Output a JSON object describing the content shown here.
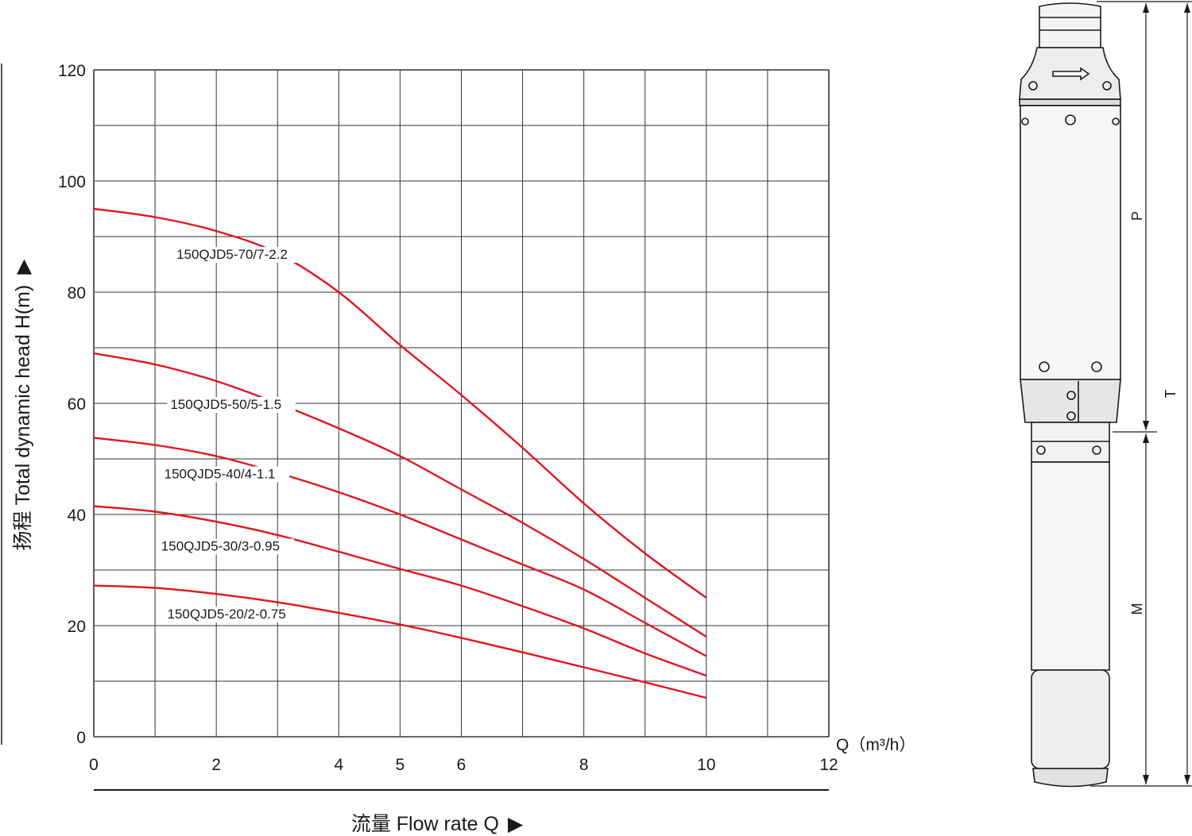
{
  "chart_data": {
    "type": "line",
    "xlabel": "流量 Flow rate Q",
    "xlabel_arrow": "▶",
    "ylabel": "扬程 Total dynamic head H(m)",
    "ylabel_arrow": "▶",
    "x_unit_label": "Q（m³/h）",
    "xlim": [
      0,
      12
    ],
    "ylim": [
      0,
      120
    ],
    "x_ticks": [
      0,
      2,
      4,
      5,
      6,
      8,
      10,
      12
    ],
    "y_ticks": [
      0,
      20,
      40,
      60,
      80,
      100,
      120
    ],
    "grid": true,
    "line_color": "#e2151f",
    "series": [
      {
        "name": "150QJD5-70/7-2.2",
        "x": [
          0,
          1,
          2,
          3,
          4,
          5,
          6,
          7,
          8,
          9,
          10
        ],
        "values": [
          95,
          93.5,
          91,
          87,
          80,
          70.5,
          61.5,
          52,
          42,
          33,
          25
        ]
      },
      {
        "name": "150QJD5-50/5-1.5",
        "x": [
          0,
          1,
          2,
          3,
          4,
          5,
          6,
          7,
          8,
          9,
          10
        ],
        "values": [
          69,
          67,
          64,
          60,
          55.5,
          50.5,
          44.5,
          38.5,
          32,
          25,
          18
        ]
      },
      {
        "name": "150QJD5-40/4-1.1",
        "x": [
          0,
          1,
          2,
          3,
          4,
          5,
          6,
          7,
          8,
          9,
          10
        ],
        "values": [
          53.8,
          52.5,
          50.5,
          47.5,
          44,
          40,
          35.5,
          31,
          26.5,
          20.5,
          14.5
        ]
      },
      {
        "name": "150QJD5-30/3-0.95",
        "x": [
          0,
          1,
          2,
          3,
          4,
          5,
          6,
          7,
          8,
          9,
          10
        ],
        "values": [
          41.5,
          40.5,
          38.7,
          36.3,
          33.3,
          30.2,
          27.2,
          23.5,
          19.5,
          15,
          11
        ]
      },
      {
        "name": "150QJD5-20/2-0.75",
        "x": [
          0,
          1,
          2,
          3,
          4,
          5,
          6,
          7,
          8,
          9,
          10
        ],
        "values": [
          27.2,
          26.8,
          25.7,
          24.2,
          22.3,
          20.2,
          17.8,
          15.2,
          12.5,
          9.8,
          7
        ]
      }
    ]
  },
  "pump_drawing": {
    "dimension_labels": [
      "P",
      "T",
      "M"
    ]
  }
}
